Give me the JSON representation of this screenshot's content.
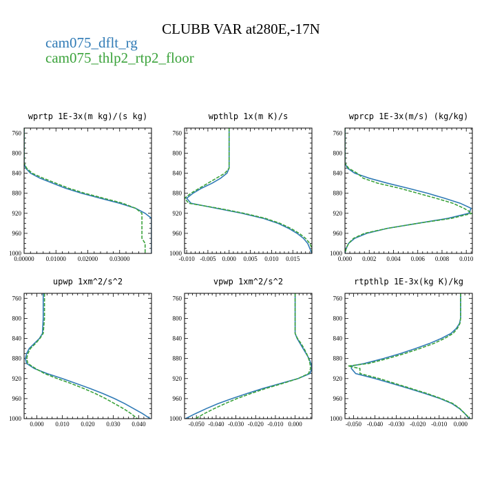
{
  "title": "CLUBB VAR at280E,-17N",
  "legend": [
    {
      "label": "cam075_dflt_rg",
      "color": "#2f7ab5",
      "dash": "solid"
    },
    {
      "label": "cam075_thlp2_rtp2_floor",
      "color": "#3aa23a",
      "dash": "dashed"
    }
  ],
  "chart_data": [
    {
      "type": "line",
      "title": "wprtp  1E-3x(m kg)/(s kg)",
      "ylim": [
        1000,
        750
      ],
      "yticks": [
        760,
        800,
        840,
        880,
        920,
        960,
        1000
      ],
      "xlim": [
        0,
        0.04
      ],
      "xticks": [
        0,
        0.01,
        0.02,
        0.03
      ],
      "xticklabels": [
        "0.00000",
        "0.01000",
        "0.02000",
        "0.03000"
      ],
      "y": [
        750,
        800,
        820,
        830,
        840,
        850,
        860,
        870,
        880,
        890,
        900,
        910,
        920,
        930,
        940,
        950,
        960,
        970,
        980,
        990,
        1000
      ],
      "series": [
        {
          "name": "cam075_dflt_rg",
          "values": [
            0,
            0,
            0,
            0.0005,
            0.002,
            0.005,
            0.009,
            0.013,
            0.018,
            0.024,
            0.03,
            0.035,
            0.038,
            0.04,
            0.04,
            0.04,
            0.04,
            0.04,
            0.04,
            0.04,
            0.04
          ]
        },
        {
          "name": "cam075_thlp2_rtp2_floor",
          "values": [
            0,
            0,
            0,
            0.0008,
            0.0025,
            0.006,
            0.01,
            0.014,
            0.019,
            0.025,
            0.031,
            0.035,
            0.037,
            0.037,
            0.037,
            0.037,
            0.037,
            0.037,
            0.038,
            0.038,
            0.038
          ]
        }
      ]
    },
    {
      "type": "line",
      "title": "wpthlp  1x(m K)/s",
      "ylim": [
        1000,
        750
      ],
      "yticks": [
        760,
        800,
        840,
        880,
        920,
        960,
        1000
      ],
      "xlim": [
        -0.0105,
        0.0195
      ],
      "xticks": [
        -0.01,
        -0.005,
        0,
        0.005,
        0.01,
        0.015
      ],
      "xticklabels": [
        "-0.010",
        "-0.005",
        "0.000",
        "0.005",
        "0.010",
        "0.015"
      ],
      "y": [
        750,
        800,
        830,
        840,
        850,
        860,
        870,
        880,
        890,
        900,
        910,
        920,
        930,
        940,
        950,
        960,
        970,
        980,
        990,
        1000
      ],
      "series": [
        {
          "name": "cam075_dflt_rg",
          "values": [
            0,
            0,
            0,
            -0.0005,
            -0.002,
            -0.004,
            -0.0065,
            -0.0085,
            -0.01,
            -0.009,
            -0.003,
            0.003,
            0.008,
            0.0115,
            0.014,
            0.016,
            0.0175,
            0.0185,
            0.019,
            0.0195
          ]
        },
        {
          "name": "cam075_thlp2_rtp2_floor",
          "values": [
            0,
            0,
            0,
            -0.001,
            -0.003,
            -0.005,
            -0.007,
            -0.009,
            -0.0105,
            -0.0095,
            -0.0025,
            0.0035,
            0.0085,
            0.012,
            0.0145,
            0.0165,
            0.018,
            0.019,
            0.0195,
            0.0195
          ]
        }
      ]
    },
    {
      "type": "line",
      "title": "wprcp  1E-3x(m/s) (kg/kg)",
      "ylim": [
        1000,
        750
      ],
      "yticks": [
        760,
        800,
        840,
        880,
        920,
        960,
        1000
      ],
      "xlim": [
        0,
        0.0105
      ],
      "xticks": [
        0,
        0.002,
        0.004,
        0.006,
        0.008,
        0.01
      ],
      "xticklabels": [
        "0.000",
        "0.002",
        "0.004",
        "0.006",
        "0.008",
        "0.010"
      ],
      "y": [
        750,
        800,
        820,
        830,
        840,
        850,
        860,
        870,
        880,
        890,
        900,
        910,
        920,
        930,
        940,
        950,
        960,
        970,
        980,
        990,
        1000
      ],
      "series": [
        {
          "name": "cam075_dflt_rg",
          "values": [
            0,
            0,
            0,
            0.0002,
            0.0008,
            0.002,
            0.0035,
            0.0052,
            0.0068,
            0.0082,
            0.0095,
            0.0104,
            0.0102,
            0.0085,
            0.006,
            0.0035,
            0.0018,
            0.0008,
            0.0003,
            0.0001,
            0
          ]
        },
        {
          "name": "cam075_thlp2_rtp2_floor",
          "values": [
            0,
            0,
            0,
            0.0003,
            0.001,
            0.0015,
            0.0027,
            0.0045,
            0.006,
            0.0075,
            0.0089,
            0.0098,
            0.0105,
            0.0088,
            0.006,
            0.0035,
            0.0016,
            0.0007,
            0.0003,
            0.0001,
            0
          ]
        }
      ]
    },
    {
      "type": "line",
      "title": "upwp  1xm^2/s^2",
      "ylim": [
        1000,
        750
      ],
      "yticks": [
        760,
        800,
        840,
        880,
        920,
        960,
        1000
      ],
      "xlim": [
        -0.005,
        0.045
      ],
      "xticks": [
        0,
        0.01,
        0.02,
        0.03,
        0.04
      ],
      "xticklabels": [
        "0.000",
        "0.010",
        "0.020",
        "0.030",
        "0.040"
      ],
      "y": [
        750,
        800,
        830,
        840,
        850,
        860,
        870,
        880,
        890,
        900,
        910,
        920,
        930,
        940,
        950,
        960,
        970,
        980,
        990,
        1000
      ],
      "series": [
        {
          "name": "cam075_dflt_rg",
          "values": [
            0.0025,
            0.0025,
            0.0022,
            0.001,
            -0.001,
            -0.003,
            -0.004,
            -0.0045,
            -0.004,
            -0.001,
            0.004,
            0.01,
            0.0155,
            0.021,
            0.026,
            0.0305,
            0.0345,
            0.038,
            0.0415,
            0.0445
          ]
        },
        {
          "name": "cam075_thlp2_rtp2_floor",
          "values": [
            0.003,
            0.003,
            0.0025,
            0.0012,
            -0.0005,
            -0.0025,
            -0.0035,
            -0.004,
            -0.0035,
            -0.0005,
            0.003,
            0.008,
            0.0135,
            0.0185,
            0.023,
            0.027,
            0.0305,
            0.034,
            0.037,
            0.0395
          ]
        }
      ]
    },
    {
      "type": "line",
      "title": "vpwp  1xm^2/s^2",
      "ylim": [
        1000,
        750
      ],
      "yticks": [
        760,
        800,
        840,
        880,
        920,
        960,
        1000
      ],
      "xlim": [
        -0.056,
        0.0085
      ],
      "xticks": [
        -0.05,
        -0.04,
        -0.03,
        -0.02,
        -0.01,
        0
      ],
      "xticklabels": [
        "-0.050",
        "-0.040",
        "-0.030",
        "-0.020",
        "-0.010",
        "0.000"
      ],
      "y": [
        750,
        800,
        830,
        840,
        850,
        860,
        870,
        880,
        890,
        900,
        910,
        920,
        930,
        940,
        950,
        960,
        970,
        980,
        990,
        1000
      ],
      "series": [
        {
          "name": "cam075_dflt_rg",
          "values": [
            0,
            0,
            0,
            0.001,
            0.0025,
            0.004,
            0.0055,
            0.007,
            0.008,
            0.0085,
            0.0075,
            0.0015,
            -0.0075,
            -0.0165,
            -0.0245,
            -0.032,
            -0.039,
            -0.045,
            -0.0505,
            -0.0555
          ]
        },
        {
          "name": "cam075_thlp2_rtp2_floor",
          "values": [
            0,
            0,
            0,
            0.0012,
            0.003,
            0.0045,
            0.0058,
            0.0068,
            0.0075,
            0.0078,
            0.0068,
            0.0015,
            -0.0065,
            -0.015,
            -0.0225,
            -0.0295,
            -0.0355,
            -0.041,
            -0.046,
            -0.0505
          ]
        }
      ]
    },
    {
      "type": "line",
      "title": "rtpthlp  1E-3x(kg K)/kg",
      "ylim": [
        1000,
        750
      ],
      "yticks": [
        760,
        800,
        840,
        880,
        920,
        960,
        1000
      ],
      "xlim": [
        -0.054,
        0.0055
      ],
      "xticks": [
        -0.05,
        -0.04,
        -0.03,
        -0.02,
        -0.01,
        0
      ],
      "xticklabels": [
        "-0.050",
        "-0.040",
        "-0.030",
        "-0.020",
        "-0.010",
        "0.000"
      ],
      "y": [
        750,
        800,
        810,
        820,
        830,
        840,
        850,
        860,
        870,
        880,
        890,
        895,
        900,
        910,
        920,
        930,
        940,
        950,
        960,
        970,
        980,
        990,
        1000
      ],
      "series": [
        {
          "name": "cam075_dflt_rg",
          "values": [
            0,
            0,
            -0.0005,
            -0.002,
            -0.0045,
            -0.009,
            -0.0145,
            -0.021,
            -0.028,
            -0.036,
            -0.045,
            -0.051,
            -0.051,
            -0.049,
            -0.04,
            -0.032,
            -0.024,
            -0.0165,
            -0.0095,
            -0.004,
            -0.0005,
            0.002,
            0.004
          ]
        },
        {
          "name": "cam075_thlp2_rtp2_floor",
          "values": [
            0,
            0,
            -0.0003,
            -0.0015,
            -0.0035,
            -0.0075,
            -0.0125,
            -0.019,
            -0.026,
            -0.034,
            -0.043,
            -0.0525,
            -0.047,
            -0.047,
            -0.038,
            -0.0305,
            -0.023,
            -0.0155,
            -0.009,
            -0.0035,
            -0.0003,
            0.002,
            0.0045
          ]
        }
      ]
    }
  ]
}
